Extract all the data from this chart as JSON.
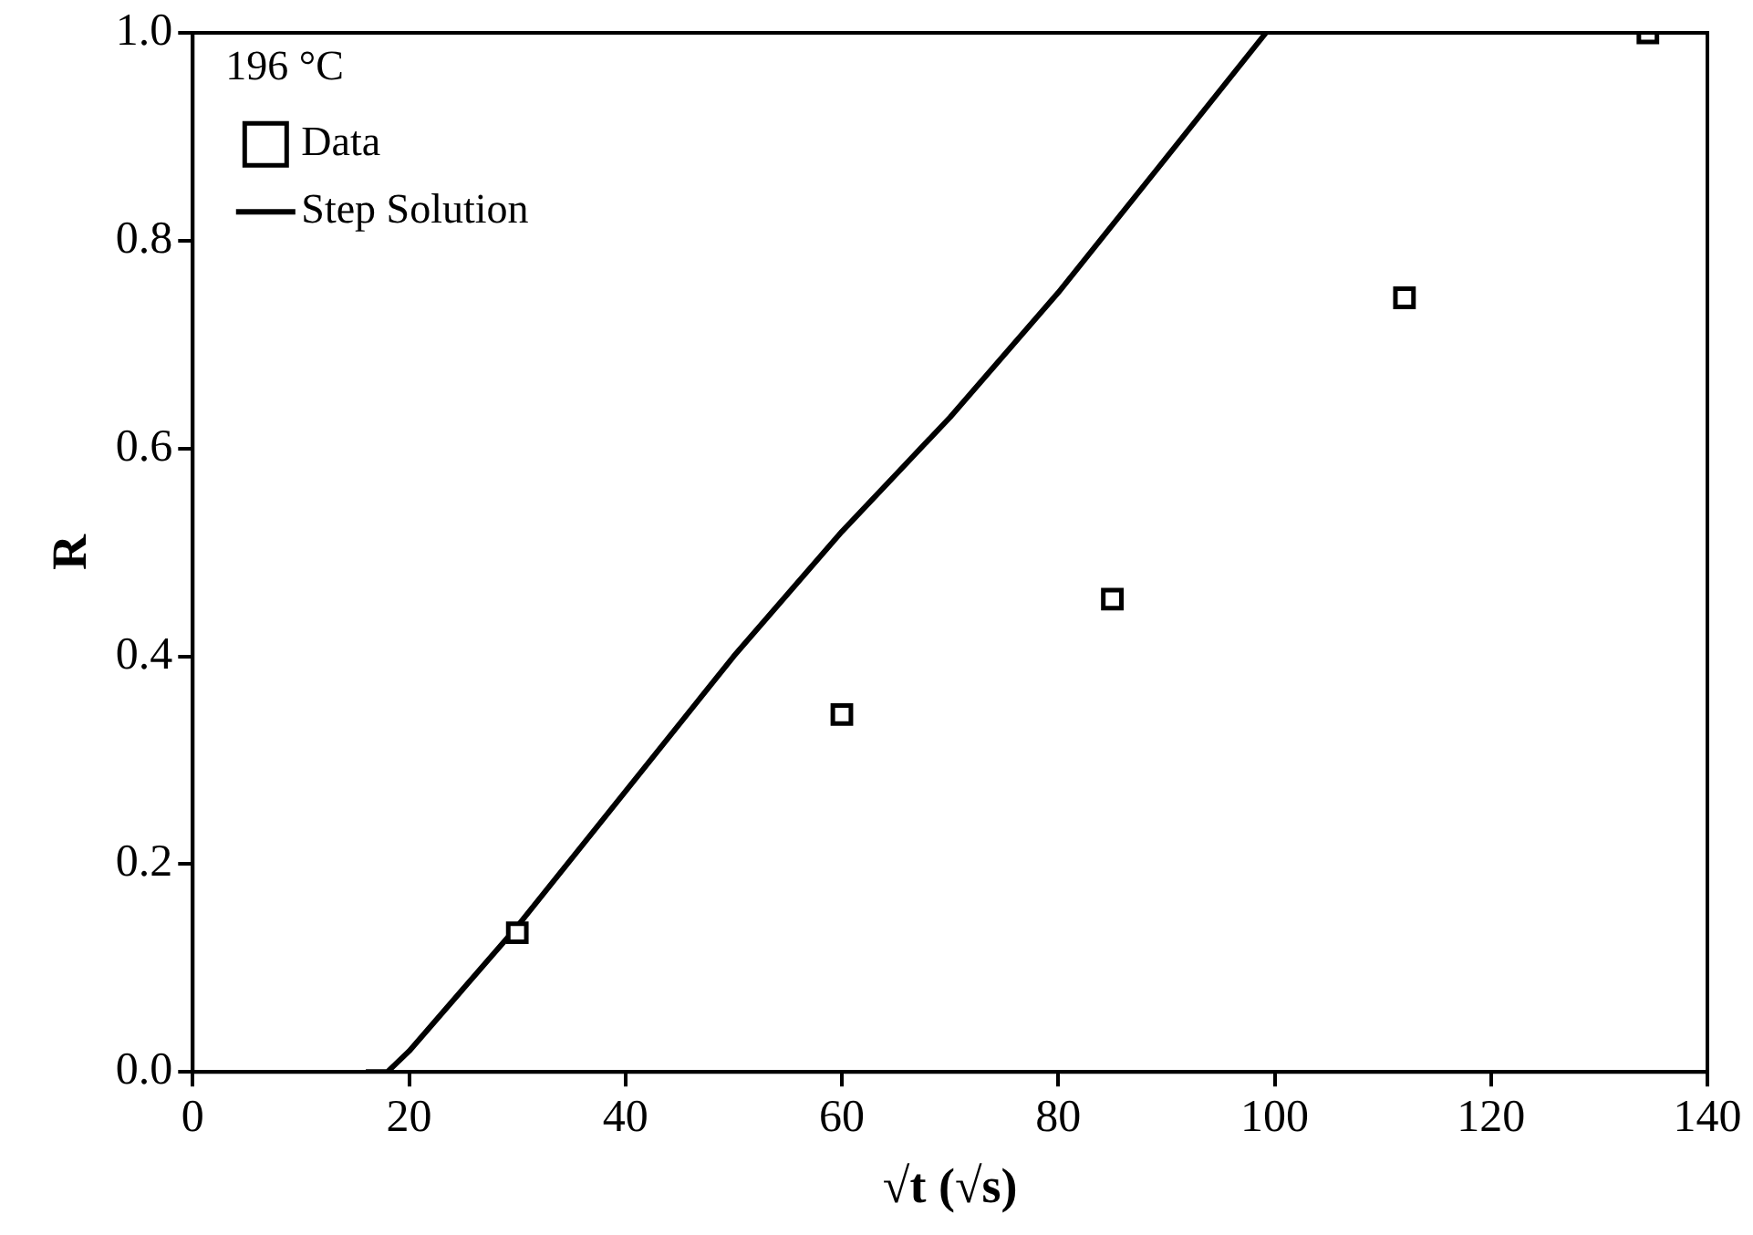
{
  "chart_data": {
    "type": "scatter",
    "xlabel": "√t (√s)",
    "ylabel": "R",
    "legend_title": "196 °C",
    "legend": "top left",
    "grid": false,
    "xlim": [
      0,
      140
    ],
    "xticks": [
      0,
      20,
      40,
      60,
      80,
      100,
      120,
      140
    ],
    "ylim": [
      0,
      1
    ],
    "yticks": [
      {
        "value": 0,
        "label": "0.0"
      },
      {
        "value": 0.2,
        "label": "0.2"
      },
      {
        "value": 0.4,
        "label": "0.4"
      },
      {
        "value": 0.6,
        "label": "0.6"
      },
      {
        "value": 0.8,
        "label": "0.8"
      },
      {
        "value": 1,
        "label": "1.0"
      }
    ],
    "series": [
      {
        "name": "Data",
        "type": "scatter",
        "marker": "square",
        "color": "#000000",
        "x": [
          30,
          60,
          85,
          112,
          134.5
        ],
        "values": [
          0.134,
          0.344,
          0.455,
          0.745,
          1.0
        ]
      },
      {
        "name": "Step Solution",
        "type": "line",
        "marker": "none",
        "line_style": "solid",
        "color": "#000000",
        "x": [
          16,
          18,
          20,
          25,
          30,
          40,
          50,
          60,
          70,
          80,
          90,
          99.2
        ],
        "values": [
          0,
          0,
          0.02,
          0.08,
          0.14,
          0.27,
          0.4,
          0.52,
          0.63,
          0.75,
          0.88,
          1.0
        ]
      }
    ]
  }
}
